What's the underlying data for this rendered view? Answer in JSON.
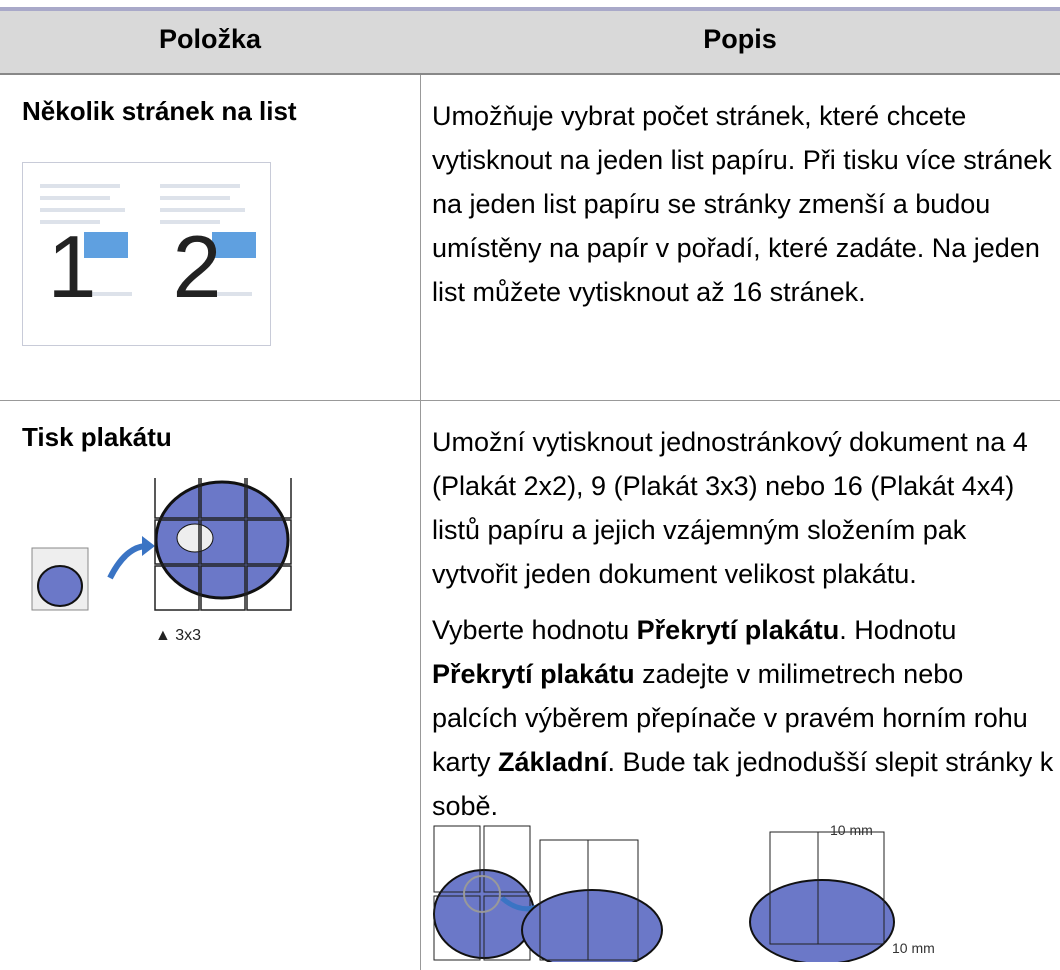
{
  "table": {
    "header": [
      "Položka",
      "Popis"
    ],
    "rows": [
      {
        "item": "Několik stránek na list",
        "image_labels": [
          "1",
          "2"
        ],
        "paragraphs": [
          [
            {
              "text": "Umožňuje vybrat počet stránek, které chcete vytisknout na jeden list papíru. Při tisku více stránek na jeden list papíru se stránky zmenší a budou umístěny na papír v pořadí, které zadáte. Na jeden list můžete vytisknout až 16 stránek.",
              "bold": false
            }
          ]
        ]
      },
      {
        "item": "Tisk plakátu",
        "image_caption": "▲ 3x3",
        "paragraphs": [
          [
            {
              "text": "Umožní vytisknout jednostránkový dokument na 4 (Plakát 2x2), 9 (Plakát 3x3) nebo 16 (Plakát 4x4) listů papíru a jejich vzájemným složením pak vytvořit jeden dokument velikost plakátu.",
              "bold": false
            }
          ],
          [
            {
              "text": "Vyberte hodnotu ",
              "bold": false
            },
            {
              "text": "Překrytí plakátu",
              "bold": true
            },
            {
              "text": ". Hodnotu ",
              "bold": false
            },
            {
              "text": "Překrytí plakátu",
              "bold": true
            },
            {
              "text": " zadejte v milimetrech nebo palcích výběrem přepínače v pravém horním rohu karty ",
              "bold": false
            },
            {
              "text": "Základní",
              "bold": true
            },
            {
              "text": ". Bude tak jednodušší slepit stránky k sobě.",
              "bold": false
            }
          ]
        ],
        "overlap_labels": [
          "10 mm",
          "10 mm"
        ]
      }
    ]
  }
}
